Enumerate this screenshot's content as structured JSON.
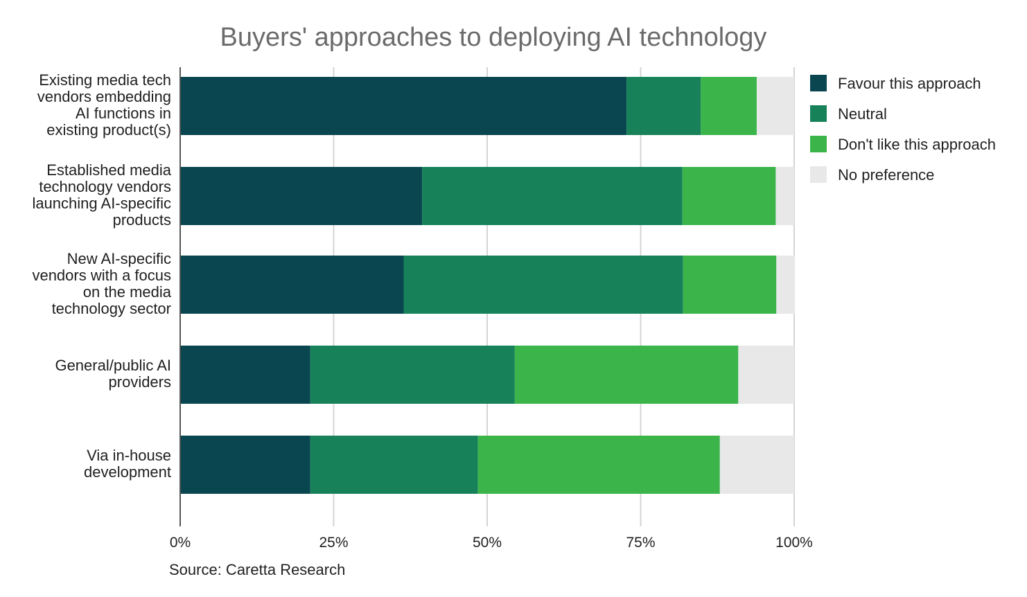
{
  "chart_data": {
    "type": "bar",
    "orientation": "horizontal",
    "stacked": true,
    "title": "Buyers' approaches to deploying AI technology",
    "source": "Source: Caretta Research",
    "categories": [
      [
        "Existing media tech",
        "vendors embedding",
        "AI functions in",
        "existing product(s)"
      ],
      [
        "Established media",
        "technology vendors",
        "launching AI-specific",
        "products"
      ],
      [
        "New AI-specific",
        "vendors with a focus",
        "on the media",
        "technology sector"
      ],
      [
        "General/public AI",
        "providers"
      ],
      [
        "Via in-house",
        "development"
      ]
    ],
    "series": [
      {
        "name": "Favour this approach",
        "color": "#0a4650",
        "values": [
          72.7,
          39.4,
          36.4,
          21.2,
          21.2
        ]
      },
      {
        "name": "Neutral",
        "color": "#17825a",
        "values": [
          12.1,
          42.4,
          45.5,
          33.3,
          27.3
        ]
      },
      {
        "name": "Don't like this approach",
        "color": "#3bb54a",
        "values": [
          9.1,
          15.2,
          15.2,
          36.4,
          39.4
        ]
      },
      {
        "name": "No preference",
        "color": "#e8e8e8",
        "values": [
          6.1,
          3.0,
          3.0,
          9.1,
          12.1
        ]
      }
    ],
    "xlim": [
      0,
      100
    ],
    "xticks": [
      "0%",
      "25%",
      "50%",
      "75%",
      "100%"
    ],
    "xtick_values": [
      0,
      25,
      50,
      75,
      100
    ],
    "grid": true,
    "legend_position": "right-top"
  }
}
